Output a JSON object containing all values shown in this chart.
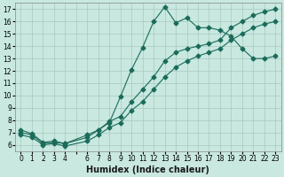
{
  "xlabel": "Humidex (Indice chaleur)",
  "ylabel": "",
  "background_color": "#c8e8e0",
  "grid_color": "#a8c8c0",
  "line_color": "#1a6b5a",
  "xlim": [
    -0.5,
    23.5
  ],
  "ylim": [
    5.5,
    17.5
  ],
  "xticks": [
    0,
    1,
    2,
    3,
    4,
    5,
    6,
    7,
    8,
    9,
    10,
    11,
    12,
    13,
    14,
    15,
    16,
    17,
    18,
    19,
    20,
    21,
    22,
    23
  ],
  "yticks": [
    6,
    7,
    8,
    9,
    10,
    11,
    12,
    13,
    14,
    15,
    16,
    17
  ],
  "lines": [
    {
      "x": [
        0,
        1,
        2,
        3,
        4,
        6,
        7,
        8,
        9,
        10,
        11,
        12,
        13,
        14,
        15,
        16,
        17,
        18,
        19,
        20,
        21,
        22,
        23
      ],
      "y": [
        7.2,
        6.9,
        6.2,
        6.3,
        6.1,
        6.8,
        7.2,
        7.8,
        9.9,
        12.1,
        13.9,
        16.0,
        17.2,
        15.9,
        16.3,
        15.5,
        15.5,
        15.3,
        14.8,
        13.8,
        13.0,
        13.0,
        13.2
      ]
    },
    {
      "x": [
        0,
        1,
        2,
        3,
        4,
        6,
        7,
        8,
        9,
        10,
        11,
        12,
        13,
        14,
        15,
        16,
        17,
        18,
        19,
        20,
        21,
        22,
        23
      ],
      "y": [
        7.0,
        6.8,
        6.1,
        6.2,
        6.1,
        6.6,
        7.2,
        7.9,
        8.3,
        9.5,
        10.5,
        11.5,
        12.8,
        13.5,
        13.8,
        14.0,
        14.2,
        14.5,
        15.5,
        16.0,
        16.5,
        16.8,
        17.0
      ]
    },
    {
      "x": [
        0,
        1,
        2,
        3,
        4,
        6,
        7,
        8,
        9,
        10,
        11,
        12,
        13,
        14,
        15,
        16,
        17,
        18,
        19,
        20,
        21,
        22,
        23
      ],
      "y": [
        6.8,
        6.6,
        6.0,
        6.1,
        5.9,
        6.3,
        6.8,
        7.4,
        7.8,
        8.8,
        9.5,
        10.5,
        11.5,
        12.3,
        12.8,
        13.2,
        13.5,
        13.8,
        14.5,
        15.0,
        15.5,
        15.8,
        16.0
      ]
    }
  ],
  "marker": "D",
  "marker_size": 2.5,
  "line_width": 0.8,
  "font_size": 6.5,
  "xlabel_fontsize": 7,
  "tick_fontsize": 5.5
}
